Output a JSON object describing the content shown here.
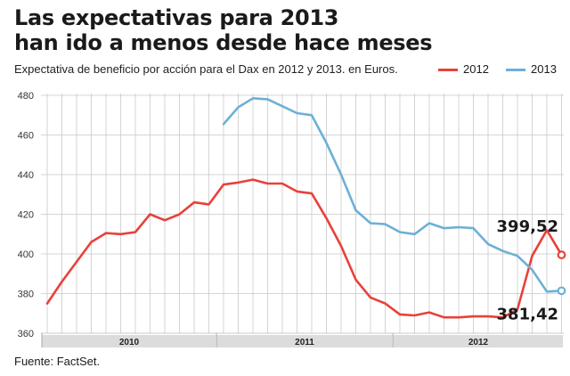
{
  "header": {
    "title_line1": "Las expectativas para 2013",
    "title_line2": "han ido a menos desde hace meses",
    "subtitle": "Expectativa de beneficio por acción para el Dax en 2012 y 2013. en Euros."
  },
  "footer": {
    "source": "Fuente: FactSet."
  },
  "colors": {
    "s2012": "#e8413a",
    "s2013": "#6cb0d6",
    "grid": "#c9c9c9",
    "band": "#dcdcdc"
  },
  "chart_data": {
    "type": "line",
    "title": "Las expectativas para 2013 han ido a menos desde hace meses",
    "subtitle": "Expectativa de beneficio por acción para el Dax en 2012 y 2013. en Euros.",
    "xlabel": "",
    "ylabel": "",
    "ylim": [
      360,
      480
    ],
    "yticks": [
      360,
      380,
      400,
      420,
      440,
      460,
      480
    ],
    "x_year_labels": [
      "2010",
      "2011",
      "2012"
    ],
    "grid": true,
    "legend_position": "top-right",
    "series": [
      {
        "name": "2012",
        "color": "#e8413a",
        "start_index": 0,
        "values": [
          375,
          386,
          396,
          406,
          410.5,
          410,
          411,
          420,
          417,
          420,
          426,
          425,
          435,
          436,
          437.5,
          435.5,
          435.5,
          431.5,
          430.5,
          418,
          404,
          387,
          378,
          375,
          369.5,
          369,
          370.5,
          368,
          368,
          368.5,
          368.5,
          368,
          372,
          399,
          412,
          399.52
        ],
        "end_label": "399,52"
      },
      {
        "name": "2013",
        "color": "#6cb0d6",
        "start_index": 12,
        "values": [
          465.5,
          474,
          478.5,
          478,
          474.5,
          471,
          470,
          456,
          440,
          422,
          415.5,
          415,
          411,
          410,
          415.5,
          413,
          413.5,
          413,
          405,
          401.5,
          399,
          392,
          381,
          381.42
        ],
        "end_label": "381,42"
      }
    ]
  }
}
